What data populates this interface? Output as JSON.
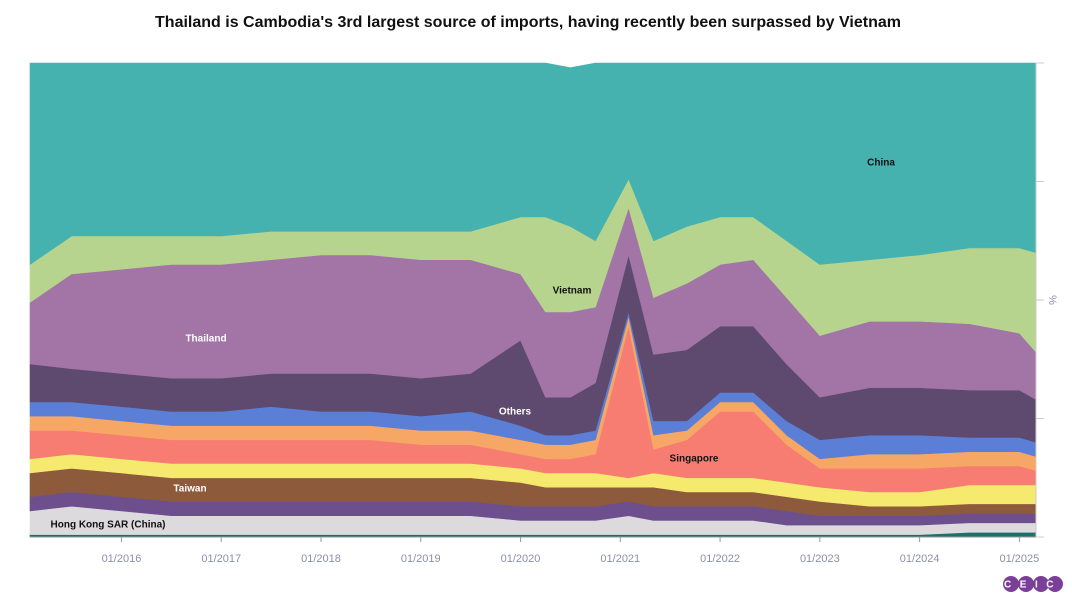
{
  "chart_data": {
    "type": "stacked_area",
    "title": "Thailand is Cambodia's 3rd largest source of imports, having recently been surpassed by Vietnam",
    "y_label": "%",
    "logo": "CEIC",
    "x": [
      "02/2015",
      "07/2015",
      "01/2016",
      "07/2016",
      "01/2017",
      "07/2017",
      "01/2018",
      "07/2018",
      "01/2019",
      "07/2019",
      "01/2020",
      "04/2020",
      "07/2020",
      "10/2020",
      "02/2021",
      "05/2021",
      "09/2021",
      "01/2022",
      "05/2022",
      "09/2022",
      "01/2023",
      "07/2023",
      "01/2024",
      "07/2024",
      "01/2025",
      "03/2025"
    ],
    "xlim": [
      "02/2015",
      "03/2025"
    ],
    "xticks": [
      "01/2016",
      "01/2017",
      "01/2018",
      "01/2019",
      "01/2020",
      "01/2021",
      "01/2022",
      "01/2023",
      "01/2024",
      "01/2025"
    ],
    "ylim": [
      0,
      100
    ],
    "yticks": [
      0,
      25,
      50,
      75,
      100
    ],
    "series": [
      {
        "color": "#1e6e6e",
        "values": [
          0.5,
          0.5,
          0.5,
          0.5,
          0.5,
          0.5,
          0.5,
          0.5,
          0.5,
          0.5,
          0.5,
          0.5,
          0.5,
          0.5,
          0.5,
          0.5,
          0.5,
          0.5,
          0.5,
          0.5,
          0.5,
          0.5,
          0.5,
          1,
          1,
          1
        ]
      },
      {
        "name": "Hong Kong SAR (China)",
        "color": "#dcdadc",
        "values": [
          5,
          6,
          5,
          4,
          4,
          4,
          4,
          4,
          4,
          4,
          3,
          3,
          3,
          3,
          4,
          3,
          3,
          3,
          3,
          2,
          2,
          2,
          2,
          2,
          2,
          2
        ]
      },
      {
        "color": "#6d4f8e",
        "values": [
          3,
          3,
          3,
          3,
          3,
          3,
          3,
          3,
          3,
          3,
          3,
          3,
          3,
          3,
          3,
          3,
          3,
          3,
          3,
          3,
          2,
          2,
          2,
          2,
          2,
          2
        ]
      },
      {
        "name": "Taiwan",
        "color": "#8e5a3c",
        "values": [
          5,
          5,
          5,
          5,
          5,
          5,
          5,
          5,
          5,
          5,
          5,
          4,
          4,
          4,
          3,
          4,
          3,
          3,
          3,
          3,
          3,
          2,
          2,
          2,
          2,
          2
        ]
      },
      {
        "color": "#f5ea6e",
        "values": [
          3,
          3,
          3,
          3,
          3,
          3,
          3,
          3,
          3,
          3,
          3,
          3,
          3,
          3,
          2,
          3,
          3,
          3,
          3,
          3,
          3,
          3,
          3,
          4,
          4,
          4
        ]
      },
      {
        "name": "Singapore",
        "color": "#f77c72",
        "values": [
          6,
          5,
          5,
          5,
          5,
          5,
          5,
          5,
          4,
          4,
          3,
          3,
          3,
          4,
          32,
          5,
          8,
          14,
          14,
          8,
          4,
          5,
          5,
          4,
          4,
          3
        ]
      },
      {
        "color": "#f7a765",
        "values": [
          3,
          3,
          3,
          3,
          3,
          3,
          3,
          3,
          3,
          3,
          3,
          3,
          3,
          3,
          2,
          3,
          2,
          2,
          2,
          2,
          2,
          3,
          3,
          3,
          3,
          3
        ]
      },
      {
        "color": "#5b7fd6",
        "values": [
          3,
          3,
          3,
          3,
          3,
          4,
          3,
          3,
          3,
          4,
          3,
          2,
          2,
          2,
          1,
          3,
          2,
          2,
          2,
          3,
          4,
          4,
          4,
          3,
          3,
          3
        ]
      },
      {
        "name": "Others",
        "color": "#5d4a6e",
        "values": [
          8,
          7,
          7,
          7,
          7,
          7,
          8,
          8,
          8,
          8,
          18,
          8,
          8,
          10,
          12,
          14,
          15,
          14,
          14,
          12,
          9,
          10,
          10,
          10,
          10,
          9
        ]
      },
      {
        "name": "Thailand",
        "color": "#a275a6",
        "values": [
          13,
          20,
          22,
          24,
          24,
          24,
          25,
          25,
          25,
          24,
          14,
          18,
          18,
          16,
          10,
          12,
          14,
          13,
          14,
          14,
          13,
          14,
          14,
          14,
          12,
          10
        ]
      },
      {
        "name": "Vietnam",
        "color": "#b6d48e",
        "values": [
          8,
          8,
          7,
          6,
          6,
          6,
          5,
          5,
          6,
          6,
          12,
          20,
          18,
          14,
          6,
          12,
          12,
          10,
          9,
          12,
          15,
          13,
          14,
          16,
          18,
          21
        ]
      },
      {
        "name": "China",
        "color": "#45b2b0",
        "values": [
          42.5,
          36.5,
          36.5,
          36.5,
          36.5,
          35.5,
          35.5,
          35.5,
          35.5,
          35.5,
          32.5,
          32.5,
          33.5,
          37.5,
          24.5,
          37.5,
          34.5,
          32.5,
          32.5,
          37.5,
          42.5,
          41.5,
          40.5,
          39,
          39,
          40
        ]
      }
    ]
  }
}
